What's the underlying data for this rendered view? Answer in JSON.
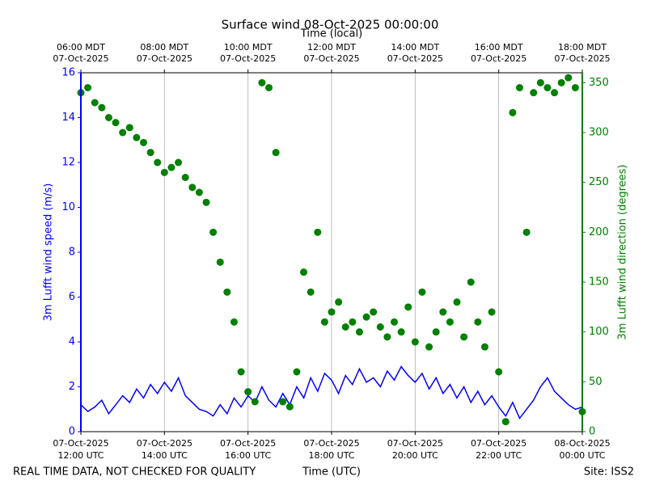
{
  "chart_data": {
    "type": "line",
    "title": "Surface wind 08-Oct-2025 00:00:00",
    "xlabel": "Time (UTC)",
    "x2label": "Time (local)",
    "ylabel": "3m Lufft wind speed (m/s)",
    "y2label": "3m Lufft wind direction (degrees)",
    "footer_left": "REAL TIME DATA, NOT CHECKED FOR QUALITY",
    "footer_right": "Site: ISS2",
    "grid": true,
    "xlim": [
      "2025-10-07T12:00",
      "2025-10-08T00:00"
    ],
    "xticks": [
      {
        "value": "2025-10-07T12:00",
        "label": [
          "07-Oct-2025",
          "12:00 UTC"
        ]
      },
      {
        "value": "2025-10-07T14:00",
        "label": [
          "07-Oct-2025",
          "14:00 UTC"
        ]
      },
      {
        "value": "2025-10-07T16:00",
        "label": [
          "07-Oct-2025",
          "16:00 UTC"
        ]
      },
      {
        "value": "2025-10-07T18:00",
        "label": [
          "07-Oct-2025",
          "18:00 UTC"
        ]
      },
      {
        "value": "2025-10-07T20:00",
        "label": [
          "07-Oct-2025",
          "20:00 UTC"
        ]
      },
      {
        "value": "2025-10-07T22:00",
        "label": [
          "07-Oct-2025",
          "22:00 UTC"
        ]
      },
      {
        "value": "2025-10-08T00:00",
        "label": [
          "08-Oct-2025",
          "00:00 UTC"
        ]
      }
    ],
    "x2ticks": [
      {
        "value": "2025-10-07T12:00",
        "label": [
          "06:00 MDT",
          "07-Oct-2025"
        ]
      },
      {
        "value": "2025-10-07T14:00",
        "label": [
          "08:00 MDT",
          "07-Oct-2025"
        ]
      },
      {
        "value": "2025-10-07T16:00",
        "label": [
          "10:00 MDT",
          "07-Oct-2025"
        ]
      },
      {
        "value": "2025-10-07T18:00",
        "label": [
          "12:00 MDT",
          "07-Oct-2025"
        ]
      },
      {
        "value": "2025-10-07T20:00",
        "label": [
          "14:00 MDT",
          "07-Oct-2025"
        ]
      },
      {
        "value": "2025-10-07T22:00",
        "label": [
          "16:00 MDT",
          "07-Oct-2025"
        ]
      },
      {
        "value": "2025-10-08T00:00",
        "label": [
          "18:00 MDT",
          "07-Oct-2025"
        ]
      }
    ],
    "ylim": [
      0,
      16
    ],
    "yticks": [
      0,
      2,
      4,
      6,
      8,
      10,
      12,
      14,
      16
    ],
    "y2lim": [
      0,
      360
    ],
    "y2ticks": [
      0,
      50,
      100,
      150,
      200,
      250,
      300,
      350
    ],
    "x": [
      "2025-10-07T12:00",
      "2025-10-07T12:10",
      "2025-10-07T12:20",
      "2025-10-07T12:30",
      "2025-10-07T12:40",
      "2025-10-07T12:50",
      "2025-10-07T13:00",
      "2025-10-07T13:10",
      "2025-10-07T13:20",
      "2025-10-07T13:30",
      "2025-10-07T13:40",
      "2025-10-07T13:50",
      "2025-10-07T14:00",
      "2025-10-07T14:10",
      "2025-10-07T14:20",
      "2025-10-07T14:30",
      "2025-10-07T14:40",
      "2025-10-07T14:50",
      "2025-10-07T15:00",
      "2025-10-07T15:10",
      "2025-10-07T15:20",
      "2025-10-07T15:30",
      "2025-10-07T15:40",
      "2025-10-07T15:50",
      "2025-10-07T16:00",
      "2025-10-07T16:10",
      "2025-10-07T16:20",
      "2025-10-07T16:30",
      "2025-10-07T16:40",
      "2025-10-07T16:50",
      "2025-10-07T17:00",
      "2025-10-07T17:10",
      "2025-10-07T17:20",
      "2025-10-07T17:30",
      "2025-10-07T17:40",
      "2025-10-07T17:50",
      "2025-10-07T18:00",
      "2025-10-07T18:10",
      "2025-10-07T18:20",
      "2025-10-07T18:30",
      "2025-10-07T18:40",
      "2025-10-07T18:50",
      "2025-10-07T19:00",
      "2025-10-07T19:10",
      "2025-10-07T19:20",
      "2025-10-07T19:30",
      "2025-10-07T19:40",
      "2025-10-07T19:50",
      "2025-10-07T20:00",
      "2025-10-07T20:10",
      "2025-10-07T20:20",
      "2025-10-07T20:30",
      "2025-10-07T20:40",
      "2025-10-07T20:50",
      "2025-10-07T21:00",
      "2025-10-07T21:10",
      "2025-10-07T21:20",
      "2025-10-07T21:30",
      "2025-10-07T21:40",
      "2025-10-07T21:50",
      "2025-10-07T22:00",
      "2025-10-07T22:10",
      "2025-10-07T22:20",
      "2025-10-07T22:30",
      "2025-10-07T22:40",
      "2025-10-07T22:50",
      "2025-10-07T23:00",
      "2025-10-07T23:10",
      "2025-10-07T23:20",
      "2025-10-07T23:30",
      "2025-10-07T23:40",
      "2025-10-07T23:50",
      "2025-10-08T00:00"
    ],
    "series": [
      {
        "name": "3m Lufft wind speed",
        "color": "#0000ff",
        "axis": "y",
        "kind": "line",
        "values": [
          1.2,
          0.9,
          1.1,
          1.4,
          0.8,
          1.2,
          1.6,
          1.3,
          1.9,
          1.5,
          2.1,
          1.7,
          2.2,
          1.8,
          2.4,
          1.6,
          1.3,
          1.0,
          0.9,
          0.7,
          1.2,
          0.8,
          1.5,
          1.1,
          1.6,
          1.3,
          2.0,
          1.4,
          1.1,
          1.7,
          1.2,
          2.0,
          1.5,
          2.4,
          1.8,
          2.6,
          2.3,
          1.7,
          2.5,
          2.1,
          2.8,
          2.2,
          2.4,
          2.0,
          2.7,
          2.3,
          2.9,
          2.5,
          2.2,
          2.6,
          1.9,
          2.4,
          1.7,
          2.1,
          1.5,
          2.0,
          1.3,
          1.8,
          1.2,
          1.6,
          1.1,
          0.7,
          1.3,
          0.6,
          1.0,
          1.4,
          2.0,
          2.4,
          1.8,
          1.5,
          1.2,
          1.0,
          1.1
        ]
      },
      {
        "name": "3m Lufft wind direction",
        "color": "#008000",
        "axis": "y2",
        "kind": "scatter",
        "values": [
          340,
          345,
          330,
          325,
          315,
          310,
          300,
          305,
          295,
          290,
          280,
          270,
          260,
          265,
          270,
          255,
          245,
          240,
          230,
          200,
          170,
          140,
          110,
          60,
          40,
          30,
          350,
          345,
          280,
          30,
          25,
          60,
          160,
          140,
          200,
          110,
          120,
          130,
          105,
          110,
          100,
          115,
          120,
          105,
          95,
          110,
          100,
          125,
          90,
          140,
          85,
          100,
          120,
          110,
          130,
          95,
          150,
          110,
          85,
          120,
          60,
          10,
          320,
          345,
          200,
          340,
          350,
          345,
          340,
          350,
          355,
          345,
          20
        ]
      }
    ]
  }
}
